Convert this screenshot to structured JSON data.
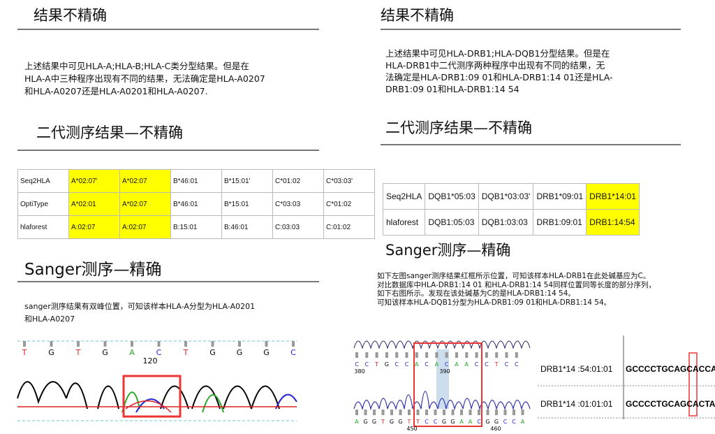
{
  "left": {
    "heading1": "结果不精确",
    "paragraph": [
      "上述结果中可见HLA-A;HLA-B;HLA-C类分型结果。但是在",
      "HLA-A中三种程序出现有不同的结果，无法确定是HLA-A0207",
      "和HLA-A0207还是HLA-A0201和HLA-A0207."
    ],
    "heading2": "二代测序结果—不精确",
    "table": {
      "rows": [
        [
          "Seq2HLA",
          "A*02:07'",
          "A*02:07",
          "B*46:01",
          "B*15:01'",
          "C*01:02",
          "C*03:03'"
        ],
        [
          "OptiType",
          "A*02:01",
          "A*02:07",
          "B*46:01",
          "B*15:01",
          "C*03:03",
          "C*01:02"
        ],
        [
          "hlaforest",
          "A:02:07",
          "A:02:07",
          "B:15:01",
          "B:46:01",
          "C:03:03",
          "C:01:02"
        ]
      ]
    },
    "heading3": "Sanger测序—精确",
    "sanger_text": [
      "sanger测序结果有双峰位置，可知该样本HLA-A分型为HLA-A0201",
      "和HLA-A0207"
    ],
    "chromatogram": {
      "bases": [
        "T",
        "G",
        "T",
        "G",
        "A",
        "C",
        "T",
        "G",
        "G",
        "G",
        "C"
      ],
      "position": "120"
    }
  },
  "right": {
    "heading1": "结果不精确",
    "paragraph": [
      "上述结果中可见HLA-DRB1;HLA-DQB1分型结果。但是在",
      "HLA-DRB1中二代测序两种程序中出现有不同的结果，无",
      "法确定是HLA-DRB1:09 01和HLA-DRB1:14 01还是HLA-",
      "DRB1:09 01和HLA-DRB1:14 54"
    ],
    "heading2": "二代测序结果—不精确",
    "table": {
      "rows": [
        [
          "Seq2HLA",
          "DQB1*05:03",
          "DQB1*03:03'",
          "DRB1*09:01",
          "DRB1*14:01"
        ],
        [
          "hlaforest",
          "DQB1:05:03",
          "DQB1:03:03",
          "DRB1:09:01",
          "DRB1:14:54"
        ]
      ]
    },
    "heading3": "Sanger测序—精确",
    "sanger_text": [
      "如下左图sanger测序结果红框所示位置，可知该样本HLA-DRB1在此处碱基应为C。",
      "对比数据库中HLA-DRB1:14 01 和HLA-DRB1:14 54同样位置同等长度的部分序列，",
      "如下右图所示。发现在该处碱基为C的是HLA-DRB1:14 54。",
      "可知该样本HLA-DQB1分型为HLA-DRB1:09 01和HLA-DRB1:14 54。"
    ],
    "chromatogram": {
      "top_bases": [
        "C",
        "C",
        "T",
        "G",
        "C",
        "C",
        "A",
        "C",
        "A",
        "C",
        "A",
        "A",
        "C",
        "C",
        "T",
        "C",
        "C"
      ],
      "top_positions": [
        "380",
        "390"
      ],
      "bottom_bases": [
        "A",
        "G",
        "G",
        "T",
        "G",
        "G",
        "T",
        "T",
        "C",
        "C",
        "G",
        "G",
        "A",
        "A",
        "C",
        "G",
        "G",
        "C",
        "C",
        "A"
      ],
      "bottom_positions": [
        "450",
        "460"
      ]
    },
    "alignment": [
      {
        "label": "DRB1*14 :54:01:01",
        "sequence": "GCCCCTGCAGCACCACA"
      },
      {
        "label": "DRB1*14 :01:01:01",
        "sequence": "GCCCCTGCAGCACTACA"
      }
    ]
  }
}
